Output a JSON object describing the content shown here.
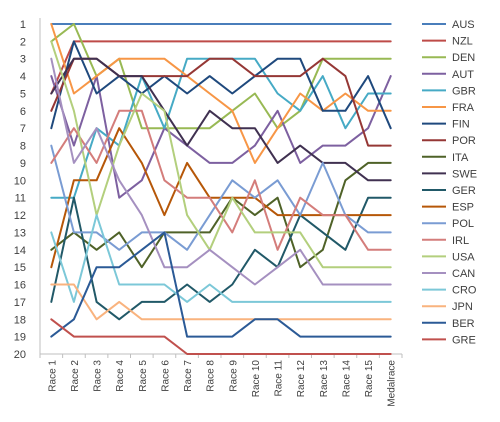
{
  "chart_data": {
    "type": "line",
    "title": "",
    "xlabel": "",
    "ylabel": "",
    "y_axis": "rank (inverted)",
    "ylim": [
      1,
      20
    ],
    "yticks": [
      1,
      2,
      3,
      4,
      5,
      6,
      7,
      8,
      9,
      10,
      11,
      12,
      13,
      14,
      15,
      16,
      17,
      18,
      19,
      20
    ],
    "grid": false,
    "legend_placement": "right",
    "categories": [
      "Race 1",
      "Race 2",
      "Race 3",
      "Race 4",
      "Race 5",
      "Race 6",
      "Race 7",
      "Race 8",
      "Race 9",
      "Race 10",
      "Race 11",
      "Race 12",
      "Race 13",
      "Race 14",
      "Race 15",
      "Medalrace"
    ],
    "series": [
      {
        "name": "AUS",
        "color": "#4a7ebb",
        "values": [
          1,
          1,
          1,
          1,
          1,
          1,
          1,
          1,
          1,
          1,
          1,
          1,
          1,
          1,
          1,
          1
        ]
      },
      {
        "name": "NZL",
        "color": "#be4b48",
        "values": [
          5,
          2,
          2,
          2,
          2,
          2,
          2,
          2,
          2,
          2,
          2,
          2,
          2,
          2,
          2,
          2
        ]
      },
      {
        "name": "DEN",
        "color": "#98b954",
        "values": [
          2,
          1,
          4,
          3,
          7,
          7,
          7,
          7,
          6,
          5,
          7,
          6,
          3,
          3,
          3,
          3
        ]
      },
      {
        "name": "AUT",
        "color": "#7d60a0",
        "values": [
          4,
          8,
          4,
          11,
          10,
          7,
          8,
          9,
          9,
          8,
          6,
          9,
          8,
          8,
          7,
          4
        ]
      },
      {
        "name": "GBR",
        "color": "#46aac5",
        "values": [
          11,
          11,
          7,
          8,
          4,
          7,
          3,
          3,
          3,
          3,
          5,
          6,
          4,
          7,
          5,
          5
        ]
      },
      {
        "name": "FRA",
        "color": "#f79646",
        "values": [
          1,
          5,
          4,
          3,
          3,
          3,
          4,
          5,
          6,
          9,
          7,
          5,
          6,
          5,
          6,
          6
        ]
      },
      {
        "name": "FIN",
        "color": "#1f497d",
        "values": [
          7,
          2,
          5,
          4,
          5,
          4,
          5,
          4,
          5,
          4,
          3,
          3,
          6,
          6,
          4,
          7
        ]
      },
      {
        "name": "POR",
        "color": "#953735",
        "values": [
          6,
          3,
          3,
          4,
          4,
          4,
          4,
          3,
          3,
          4,
          4,
          4,
          3,
          4,
          8,
          8
        ]
      },
      {
        "name": "ITA",
        "color": "#4f6228",
        "values": [
          14,
          13,
          14,
          13,
          15,
          13,
          13,
          13,
          11,
          12,
          11,
          15,
          14,
          10,
          9,
          9
        ]
      },
      {
        "name": "SWE",
        "color": "#403151",
        "values": [
          5,
          3,
          3,
          4,
          4,
          6,
          8,
          6,
          7,
          7,
          9,
          8,
          9,
          9,
          10,
          10
        ]
      },
      {
        "name": "GER",
        "color": "#215968",
        "values": [
          17,
          11,
          17,
          18,
          17,
          17,
          16,
          17,
          16,
          14,
          15,
          12,
          13,
          14,
          11,
          11
        ]
      },
      {
        "name": "ESP",
        "color": "#b65708",
        "values": [
          15,
          10,
          10,
          7,
          9,
          12,
          9,
          11,
          11,
          11,
          12,
          12,
          12,
          12,
          12,
          12
        ]
      },
      {
        "name": "POL",
        "color": "#7a9cd3",
        "values": [
          8,
          13,
          13,
          14,
          13,
          13,
          14,
          12,
          10,
          11,
          10,
          12,
          9,
          12,
          13,
          13
        ]
      },
      {
        "name": "IRL",
        "color": "#d47d7b",
        "values": [
          9,
          7,
          9,
          6,
          6,
          10,
          11,
          11,
          13,
          10,
          14,
          11,
          12,
          12,
          14,
          14
        ]
      },
      {
        "name": "USA",
        "color": "#b3cf7d",
        "values": [
          2,
          6,
          12,
          8,
          5,
          6,
          12,
          14,
          11,
          13,
          13,
          13,
          15,
          15,
          15,
          15
        ]
      },
      {
        "name": "CAN",
        "color": "#a590c0",
        "values": [
          3,
          9,
          7,
          10,
          12,
          15,
          15,
          14,
          15,
          16,
          15,
          14,
          16,
          16,
          16,
          16
        ]
      },
      {
        "name": "CRO",
        "color": "#7cc8d8",
        "values": [
          13,
          17,
          12,
          16,
          16,
          16,
          17,
          16,
          17,
          17,
          17,
          17,
          17,
          17,
          17,
          17
        ]
      },
      {
        "name": "JPN",
        "color": "#f9b37e",
        "values": [
          16,
          16,
          18,
          17,
          18,
          18,
          18,
          18,
          18,
          18,
          18,
          18,
          18,
          18,
          18,
          18
        ]
      },
      {
        "name": "BER",
        "color": "#2b5a96",
        "values": [
          19,
          18,
          15,
          15,
          14,
          13,
          19,
          19,
          19,
          18,
          18,
          19,
          19,
          19,
          19,
          19
        ]
      },
      {
        "name": "GRE",
        "color": "#c0504d",
        "values": [
          18,
          19,
          19,
          19,
          19,
          19,
          20,
          20,
          20,
          20,
          20,
          20,
          20,
          20,
          20,
          20
        ]
      }
    ]
  }
}
